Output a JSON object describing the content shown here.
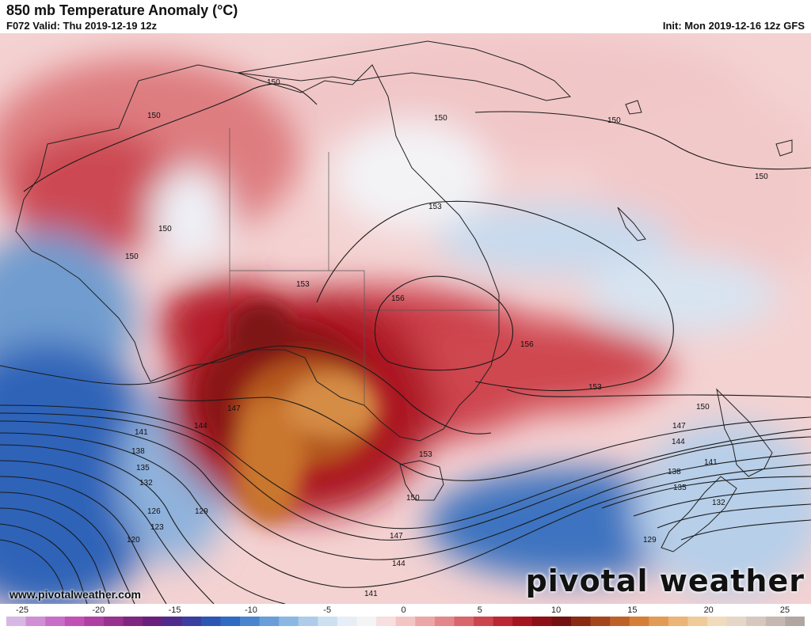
{
  "header": {
    "title": "850 mb Temperature Anomaly (°C)",
    "valid": "F072 Valid: Thu 2019-12-19 12z",
    "init": "Init: Mon 2019-12-16 12z GFS"
  },
  "watermark": {
    "site": "www.pivotalweather.com",
    "brand": "pivotal weather"
  },
  "contour_labels": [
    "150",
    "150",
    "150",
    "150",
    "150",
    "150",
    "153",
    "150",
    "153",
    "156",
    "156",
    "153",
    "150",
    "147",
    "147",
    "144",
    "144",
    "141",
    "141",
    "138",
    "138",
    "135",
    "135",
    "132",
    "132",
    "129",
    "129",
    "126",
    "123",
    "120",
    "153",
    "150",
    "147",
    "144",
    "141"
  ],
  "colorbar": {
    "min": -25,
    "max": 25,
    "tick_labels": [
      "-25",
      "-20",
      "-15",
      "-10",
      "-5",
      "0",
      "5",
      "10",
      "15",
      "20",
      "25"
    ],
    "colors": [
      "#d7b7e3",
      "#d08fd4",
      "#c96ec8",
      "#c052b5",
      "#b03fa4",
      "#98328f",
      "#7f2680",
      "#6a1f7d",
      "#4f2a8a",
      "#3a3e9e",
      "#2d55b3",
      "#2f6bc2",
      "#4a84cd",
      "#6a9ed8",
      "#8cb7e2",
      "#aeccea",
      "#cde0f1",
      "#e6eff8",
      "#f4f4f4",
      "#f8dede",
      "#f3c4c4",
      "#eda6a8",
      "#e4878b",
      "#d9666c",
      "#cc454e",
      "#bb2733",
      "#a51520",
      "#8d0f17",
      "#741012",
      "#8a2a10",
      "#a4461c",
      "#bd6128",
      "#d47e38",
      "#e29b55",
      "#eab576",
      "#eecb99",
      "#f0dcbc",
      "#e6d6c8",
      "#d6c8bf",
      "#c4b8b0",
      "#b1a6a0"
    ]
  }
}
